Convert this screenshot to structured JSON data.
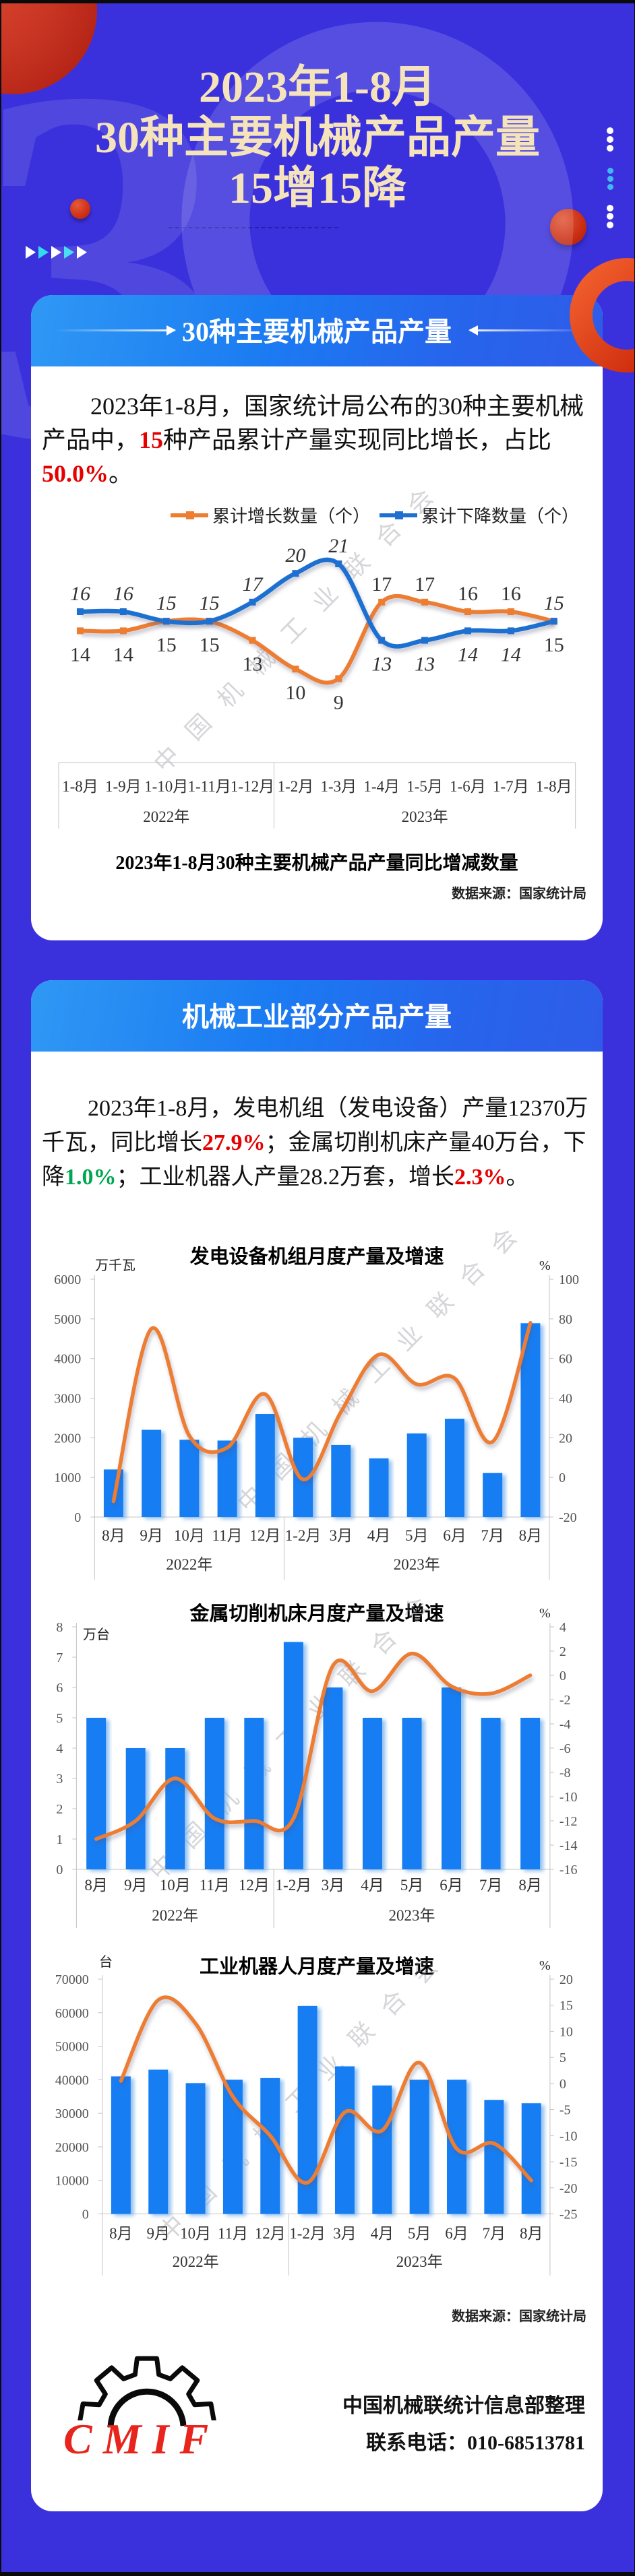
{
  "colors": {
    "background": "#3b31dc",
    "card": "#ffffff",
    "band_gradient_start": "#2f98f4",
    "band_gradient_end": "#2e5ce9",
    "title_cream": "#f4e3bb",
    "accent_red": "#e60000",
    "accent_green": "#00a651",
    "bar_blue": "#177df2",
    "line_orange": "#ED7D31",
    "line_blue": "#1F6FD1",
    "deco_red": "#cc3014",
    "deco_teal": "#35d9f0"
  },
  "header": {
    "title_lines": [
      "2023年1-8月",
      "30种主要机械产品产量",
      "15增15降"
    ],
    "watermark_number": "30"
  },
  "watermark_text": "中国机械工业联合会",
  "card1": {
    "band_title": "30种主要机械产品产量",
    "paragraph": [
      {
        "indent": true,
        "segments": [
          {
            "t": "2023年1-8月，国家统计局公布的30种主要机械"
          }
        ]
      },
      {
        "indent": false,
        "segments": [
          {
            "t": "产品中，"
          },
          {
            "t": "15",
            "c": "red"
          },
          {
            "t": "种产品累计产量实现同比增长，占比"
          }
        ]
      },
      {
        "indent": false,
        "segments": [
          {
            "t": "50.0%",
            "c": "red"
          },
          {
            "t": "。"
          }
        ]
      }
    ],
    "legend": [
      {
        "label": "累计增长数量（个）",
        "color": "#ED7D31"
      },
      {
        "label": "累计下降数量（个）",
        "color": "#1F6FD1"
      }
    ],
    "caption": "2023年1-8月30种主要机械产品产量同比增减数量",
    "source": "数据来源：国家统计局"
  },
  "card2": {
    "band_title": "机械工业部分产品产量",
    "paragraph": [
      {
        "indent": true,
        "segments": [
          {
            "t": "2023年1-8月，发电机组（发电设备）产量12370万"
          }
        ]
      },
      {
        "indent": false,
        "segments": [
          {
            "t": "千瓦，同比增长"
          },
          {
            "t": "27.9%",
            "c": "red"
          },
          {
            "t": "；金属切削机床产量40万台，下"
          }
        ]
      },
      {
        "indent": false,
        "segments": [
          {
            "t": "降"
          },
          {
            "t": "1.0%",
            "c": "green"
          },
          {
            "t": "；工业机器人产量28.2万套，增长"
          },
          {
            "t": "2.3%",
            "c": "red"
          },
          {
            "t": "。"
          }
        ]
      }
    ],
    "source": "数据来源：国家统计局",
    "footer": {
      "logo": "CMIF",
      "line1": "中国机械联统计信息部整理",
      "line2": "联系电话：010-68513781"
    }
  },
  "chart_data": [
    {
      "id": "increase-decrease-line",
      "type": "line",
      "title": "2023年1-8月30种主要机械产品产量同比增减数量",
      "categories": [
        "1-8月",
        "1-9月",
        "1-10月",
        "1-11月",
        "1-12月",
        "1-2月",
        "1-3月",
        "1-4月",
        "1-5月",
        "1-6月",
        "1-7月",
        "1-8月"
      ],
      "year_groups": [
        {
          "label": "2022年",
          "span": 5
        },
        {
          "label": "2023年",
          "span": 7
        }
      ],
      "series": [
        {
          "name": "累计增长数量（个）",
          "color": "#ED7D31",
          "values": [
            14,
            14,
            15,
            15,
            13,
            10,
            9,
            17,
            17,
            16,
            16,
            15
          ]
        },
        {
          "name": "累计下降数量（个）",
          "color": "#1F6FD1",
          "values": [
            16,
            16,
            15,
            15,
            17,
            20,
            21,
            13,
            13,
            14,
            14,
            15
          ]
        }
      ],
      "legend_position": "top",
      "grid": false
    },
    {
      "id": "power-generation-equipment",
      "type": "bar-line-combo",
      "title": "发电设备机组月度产量及增速",
      "ylabel_left": "万千瓦",
      "ylabel_right": "%",
      "categories": [
        "8月",
        "9月",
        "10月",
        "11月",
        "12月",
        "1-2月",
        "3月",
        "4月",
        "5月",
        "6月",
        "7月",
        "8月"
      ],
      "year_groups": [
        {
          "label": "2022年",
          "span": 5
        },
        {
          "label": "2023年",
          "span": 7
        }
      ],
      "bars": {
        "name": "产量(万千瓦)",
        "color": "#177df2",
        "values": [
          1200,
          2200,
          1950,
          1930,
          2600,
          2000,
          1820,
          1480,
          2110,
          2480,
          1110,
          4890
        ]
      },
      "line": {
        "name": "增速(%)",
        "color": "#ED7D31",
        "values": [
          -12,
          75,
          21,
          15,
          42,
          -1,
          33,
          62,
          47,
          50,
          18,
          78
        ]
      },
      "ylim_left": [
        0,
        6000
      ],
      "yticks_left": [
        0,
        1000,
        2000,
        3000,
        4000,
        5000,
        6000
      ],
      "ylim_right": [
        -20,
        100
      ],
      "yticks_right": [
        -20,
        0,
        20,
        40,
        60,
        80,
        100
      ],
      "grid": false
    },
    {
      "id": "metal-cutting-machine-tools",
      "type": "bar-line-combo",
      "title": "金属切削机床月度产量及增速",
      "ylabel_left": "万台",
      "ylabel_right": "%",
      "categories": [
        "8月",
        "9月",
        "10月",
        "11月",
        "12月",
        "1-2月",
        "3月",
        "4月",
        "5月",
        "6月",
        "7月",
        "8月"
      ],
      "year_groups": [
        {
          "label": "2022年",
          "span": 5
        },
        {
          "label": "2023年",
          "span": 7
        }
      ],
      "bars": {
        "name": "产量(万台)",
        "color": "#177df2",
        "values": [
          5,
          4,
          4,
          5,
          5,
          7.5,
          6,
          5,
          5,
          6,
          5,
          5
        ]
      },
      "line": {
        "name": "增速(%)",
        "color": "#ED7D31",
        "values": [
          -13.5,
          -12,
          -8.5,
          -11.8,
          -12,
          -11.8,
          0.8,
          -1.3,
          1.8,
          -0.9,
          -1.5,
          0
        ]
      },
      "ylim_left": [
        0,
        8
      ],
      "yticks_left": [
        0,
        1,
        2,
        3,
        4,
        5,
        6,
        7,
        8
      ],
      "ylim_right": [
        -16,
        4
      ],
      "yticks_right": [
        -16,
        -14,
        -12,
        -10,
        -8,
        -6,
        -4,
        -2,
        0,
        2,
        4
      ],
      "grid": false
    },
    {
      "id": "industrial-robots",
      "type": "bar-line-combo",
      "title": "工业机器人月度产量及增速",
      "ylabel_left": "台",
      "ylabel_right": "%",
      "categories": [
        "8月",
        "9月",
        "10月",
        "11月",
        "12月",
        "1-2月",
        "3月",
        "4月",
        "5月",
        "6月",
        "7月",
        "8月"
      ],
      "year_groups": [
        {
          "label": "2022年",
          "span": 5
        },
        {
          "label": "2023年",
          "span": 7
        }
      ],
      "bars": {
        "name": "产量(台)",
        "color": "#177df2",
        "values": [
          41000,
          43000,
          39000,
          40000,
          40500,
          62000,
          44000,
          38300,
          40000,
          40000,
          34000,
          33000
        ]
      },
      "line": {
        "name": "增速(%)",
        "color": "#ED7D31",
        "values": [
          0.5,
          16,
          11.5,
          -2.5,
          -10,
          -19,
          -5.5,
          -9,
          4,
          -12.5,
          -11.5,
          -18.6
        ]
      },
      "ylim_left": [
        0,
        70000
      ],
      "yticks_left": [
        0,
        10000,
        20000,
        30000,
        40000,
        50000,
        60000,
        70000
      ],
      "ylim_right": [
        -25,
        20
      ],
      "yticks_right": [
        -25,
        -20,
        -15,
        -10,
        -5,
        0,
        5,
        10,
        15,
        20
      ],
      "grid": false
    }
  ]
}
